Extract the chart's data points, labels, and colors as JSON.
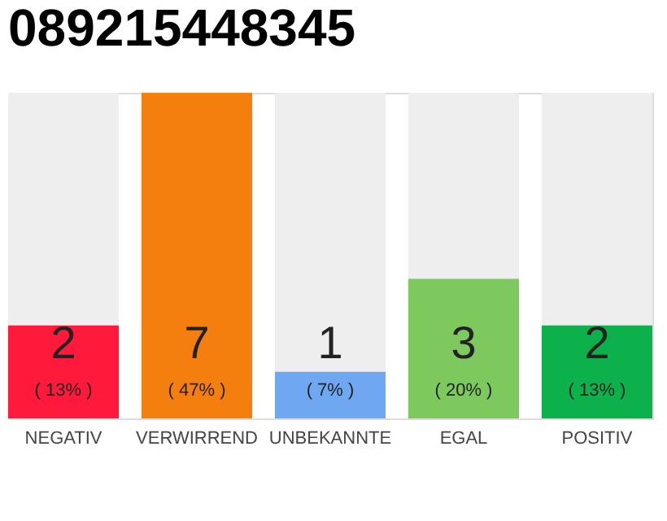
{
  "chart_data": {
    "type": "bar",
    "title": "089215448345",
    "categories": [
      "NEGATIV",
      "VERWIRREND",
      "UNBEKANNTE",
      "EGAL",
      "POSITIV"
    ],
    "values": [
      2,
      7,
      1,
      3,
      2
    ],
    "colors": [
      "#ff1a3c",
      "#f47f0f",
      "#6fa8f0",
      "#7dc95e",
      "#0db14b"
    ],
    "data_labels": true,
    "annotations": [
      "( 13% )",
      "( 47% )",
      "( 7% )",
      "( 20% )",
      "( 13% )"
    ]
  }
}
